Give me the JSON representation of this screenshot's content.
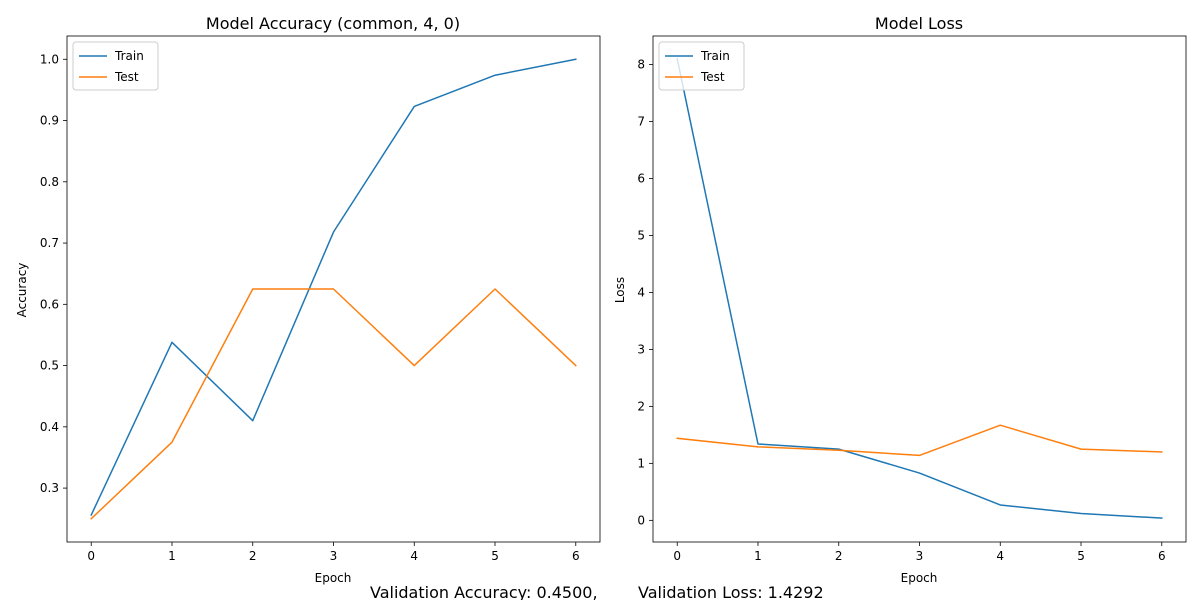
{
  "chart_data": [
    {
      "type": "line",
      "title": "Model Accuracy (common, 4, 0)",
      "xlabel": "Epoch",
      "ylabel": "Accuracy",
      "x": [
        0,
        1,
        2,
        3,
        4,
        5,
        6
      ],
      "xlim": [
        -0.3,
        6.3
      ],
      "ylim": [
        0.212,
        1.038
      ],
      "xticks": [
        0,
        1,
        2,
        3,
        4,
        5,
        6
      ],
      "yticks": [
        0.3,
        0.4,
        0.5,
        0.6,
        0.7,
        0.8,
        0.9,
        1.0
      ],
      "ytick_labels": [
        "0.3",
        "0.4",
        "0.5",
        "0.6",
        "0.7",
        "0.8",
        "0.9",
        "1.0"
      ],
      "grid": false,
      "legend_position": "top-left",
      "series": [
        {
          "name": "Train",
          "color": "#1f77b4",
          "values": [
            0.256,
            0.538,
            0.41,
            0.718,
            0.923,
            0.974,
            1.0
          ]
        },
        {
          "name": "Test",
          "color": "#ff7f0e",
          "values": [
            0.25,
            0.375,
            0.625,
            0.625,
            0.5,
            0.625,
            0.5
          ]
        }
      ]
    },
    {
      "type": "line",
      "title": "Model Loss",
      "xlabel": "Epoch",
      "ylabel": "Loss",
      "x": [
        0,
        1,
        2,
        3,
        4,
        5,
        6
      ],
      "xlim": [
        -0.3,
        6.3
      ],
      "ylim": [
        -0.38,
        8.5
      ],
      "xticks": [
        0,
        1,
        2,
        3,
        4,
        5,
        6
      ],
      "yticks": [
        0,
        1,
        2,
        3,
        4,
        5,
        6,
        7,
        8
      ],
      "ytick_labels": [
        "0",
        "1",
        "2",
        "3",
        "4",
        "5",
        "6",
        "7",
        "8"
      ],
      "grid": false,
      "legend_position": "top-left",
      "series": [
        {
          "name": "Train",
          "color": "#1f77b4",
          "values": [
            8.1,
            1.34,
            1.25,
            0.83,
            0.27,
            0.12,
            0.04
          ]
        },
        {
          "name": "Test",
          "color": "#ff7f0e",
          "values": [
            1.44,
            1.29,
            1.23,
            1.14,
            1.67,
            1.25,
            1.2
          ]
        }
      ]
    }
  ],
  "footer": {
    "accuracy_text": "Validation Accuracy: 0.4500,",
    "loss_text": "Validation Loss: 1.4292"
  }
}
